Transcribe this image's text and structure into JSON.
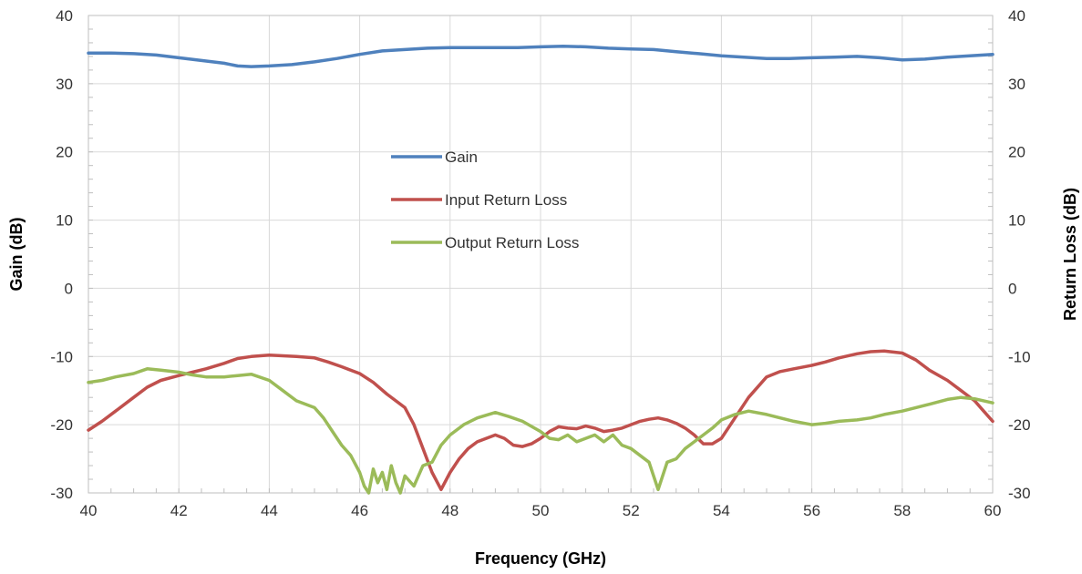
{
  "chart_data": {
    "type": "line",
    "xlabel": "Frequency (GHz)",
    "ylabel_left": "Gain (dB)",
    "ylabel_right": "Return Loss (dB)",
    "xlim": [
      40,
      60
    ],
    "ylim_left": [
      -30,
      40
    ],
    "ylim_right": [
      -30,
      40
    ],
    "x_ticks": [
      "40",
      "42",
      "44",
      "46",
      "48",
      "50",
      "52",
      "54",
      "56",
      "58",
      "60"
    ],
    "y_ticks_left": [
      "-30",
      "-20",
      "-10",
      "0",
      "10",
      "20",
      "30",
      "40"
    ],
    "y_ticks_right": [
      "-30",
      "-20",
      "-10",
      "0",
      "10",
      "20",
      "30",
      "40"
    ],
    "grid": true,
    "legend_position": "center-left",
    "series": [
      {
        "name": "Gain",
        "axis": "left",
        "color": "#4f81bd",
        "x": [
          40,
          40.5,
          41,
          41.5,
          42,
          42.5,
          43,
          43.3,
          43.6,
          44,
          44.5,
          45,
          45.5,
          46,
          46.5,
          47,
          47.5,
          48,
          48.5,
          49,
          49.5,
          50,
          50.5,
          51,
          51.5,
          52,
          52.5,
          53,
          53.5,
          54,
          54.5,
          55,
          55.5,
          56,
          56.5,
          57,
          57.5,
          58,
          58.5,
          59,
          59.5,
          60
        ],
        "values": [
          34.5,
          34.5,
          34.4,
          34.2,
          33.8,
          33.4,
          33.0,
          32.6,
          32.5,
          32.6,
          32.8,
          33.2,
          33.7,
          34.3,
          34.8,
          35.0,
          35.2,
          35.3,
          35.3,
          35.3,
          35.3,
          35.4,
          35.5,
          35.4,
          35.2,
          35.1,
          35.0,
          34.7,
          34.4,
          34.1,
          33.9,
          33.7,
          33.7,
          33.8,
          33.9,
          34.0,
          33.8,
          33.5,
          33.6,
          33.9,
          34.1,
          34.3
        ]
      },
      {
        "name": "Input Return Loss",
        "axis": "right",
        "color": "#c0504d",
        "x": [
          40,
          40.3,
          40.6,
          41,
          41.3,
          41.6,
          42,
          42.3,
          42.6,
          43,
          43.3,
          43.6,
          44,
          44.3,
          44.6,
          45,
          45.3,
          45.6,
          46,
          46.3,
          46.6,
          47,
          47.2,
          47.4,
          47.6,
          47.8,
          48,
          48.2,
          48.4,
          48.6,
          48.8,
          49,
          49.2,
          49.4,
          49.6,
          49.8,
          50,
          50.2,
          50.4,
          50.6,
          50.8,
          51,
          51.2,
          51.4,
          51.6,
          51.8,
          52,
          52.2,
          52.4,
          52.6,
          52.8,
          53,
          53.2,
          53.4,
          53.6,
          53.8,
          54,
          54.3,
          54.6,
          55,
          55.3,
          55.6,
          56,
          56.3,
          56.6,
          57,
          57.3,
          57.6,
          58,
          58.3,
          58.6,
          59,
          59.3,
          59.6,
          59.8,
          60
        ],
        "values": [
          -20.8,
          -19.5,
          -18.0,
          -16.0,
          -14.5,
          -13.5,
          -12.8,
          -12.3,
          -11.8,
          -11.0,
          -10.3,
          -10.0,
          -9.8,
          -9.9,
          -10.0,
          -10.2,
          -10.8,
          -11.5,
          -12.5,
          -13.8,
          -15.5,
          -17.5,
          -20.0,
          -23.5,
          -27.0,
          -29.5,
          -27.0,
          -25.0,
          -23.5,
          -22.5,
          -22.0,
          -21.5,
          -22.0,
          -23.0,
          -23.2,
          -22.8,
          -22.0,
          -21.0,
          -20.3,
          -20.5,
          -20.6,
          -20.2,
          -20.5,
          -21.0,
          -20.8,
          -20.5,
          -20.0,
          -19.5,
          -19.2,
          -19.0,
          -19.3,
          -19.8,
          -20.5,
          -21.5,
          -22.8,
          -22.8,
          -22.0,
          -19.0,
          -16.0,
          -13.0,
          -12.2,
          -11.8,
          -11.3,
          -10.8,
          -10.2,
          -9.6,
          -9.3,
          -9.2,
          -9.5,
          -10.5,
          -12.0,
          -13.5,
          -15.0,
          -16.5,
          -18.0,
          -19.5
        ]
      },
      {
        "name": "Output Return Loss",
        "axis": "right",
        "color": "#9bbb59",
        "x": [
          40,
          40.3,
          40.6,
          41,
          41.3,
          41.6,
          42,
          42.3,
          42.6,
          43,
          43.3,
          43.6,
          44,
          44.3,
          44.6,
          45,
          45.2,
          45.4,
          45.6,
          45.8,
          46,
          46.1,
          46.2,
          46.3,
          46.4,
          46.5,
          46.6,
          46.7,
          46.8,
          46.9,
          47,
          47.2,
          47.4,
          47.6,
          47.8,
          48,
          48.3,
          48.6,
          49,
          49.3,
          49.6,
          50,
          50.2,
          50.4,
          50.6,
          50.8,
          51,
          51.2,
          51.4,
          51.6,
          51.8,
          52,
          52.2,
          52.4,
          52.6,
          52.8,
          53,
          53.2,
          53.4,
          53.6,
          53.8,
          54,
          54.3,
          54.6,
          55,
          55.3,
          55.6,
          56,
          56.3,
          56.6,
          57,
          57.3,
          57.6,
          58,
          58.3,
          58.6,
          59,
          59.3,
          59.6,
          60
        ],
        "values": [
          -13.8,
          -13.5,
          -13.0,
          -12.5,
          -11.8,
          -12.0,
          -12.3,
          -12.7,
          -13.0,
          -13.0,
          -12.8,
          -12.6,
          -13.5,
          -15.0,
          -16.5,
          -17.5,
          -19.0,
          -21.0,
          -23.0,
          -24.5,
          -27.0,
          -29.0,
          -30.0,
          -26.5,
          -28.5,
          -27.0,
          -29.5,
          -26.0,
          -28.5,
          -30.0,
          -27.5,
          -29.0,
          -26.0,
          -25.5,
          -23.0,
          -21.5,
          -20.0,
          -19.0,
          -18.2,
          -18.8,
          -19.5,
          -21.0,
          -22.0,
          -22.2,
          -21.5,
          -22.5,
          -22.0,
          -21.5,
          -22.5,
          -21.5,
          -23.0,
          -23.5,
          -24.5,
          -25.5,
          -29.5,
          -25.5,
          -25.0,
          -23.5,
          -22.5,
          -21.5,
          -20.5,
          -19.3,
          -18.5,
          -18.0,
          -18.5,
          -19.0,
          -19.5,
          -20.0,
          -19.8,
          -19.5,
          -19.3,
          -19.0,
          -18.5,
          -18.0,
          -17.5,
          -17.0,
          -16.3,
          -16.0,
          -16.2,
          -16.8
        ]
      }
    ]
  }
}
